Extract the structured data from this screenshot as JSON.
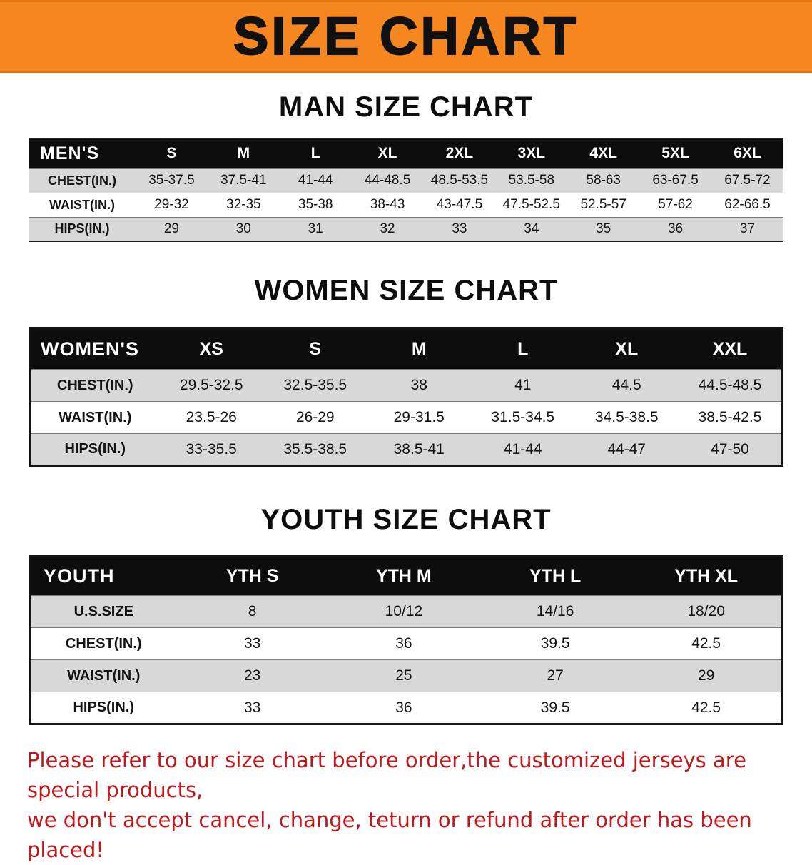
{
  "banner": {
    "title": "SIZE CHART"
  },
  "colors": {
    "banner_orange": "#f6861f",
    "header_bg": "#0d0d0d",
    "row_alt": "#d8d8d8",
    "notice_red": "#c2181b"
  },
  "men": {
    "heading": "MAN SIZE CHART",
    "table": {
      "header": [
        "MEN'S",
        "S",
        "M",
        "L",
        "XL",
        "2XL",
        "3XL",
        "4XL",
        "5XL",
        "6XL"
      ],
      "rows": [
        [
          "CHEST(IN.)",
          "35-37.5",
          "37.5-41",
          "41-44",
          "44-48.5",
          "48.5-53.5",
          "53.5-58",
          "58-63",
          "63-67.5",
          "67.5-72"
        ],
        [
          "WAIST(IN.)",
          "29-32",
          "32-35",
          "35-38",
          "38-43",
          "43-47.5",
          "47.5-52.5",
          "52.5-57",
          "57-62",
          "62-66.5"
        ],
        [
          "HIPS(IN.)",
          "29",
          "30",
          "31",
          "32",
          "33",
          "34",
          "35",
          "36",
          "37"
        ]
      ]
    }
  },
  "women": {
    "heading": "WOMEN SIZE CHART",
    "table": {
      "header": [
        "WOMEN'S",
        "XS",
        "S",
        "M",
        "L",
        "XL",
        "XXL"
      ],
      "rows": [
        [
          "CHEST(IN.)",
          "29.5-32.5",
          "32.5-35.5",
          "38",
          "41",
          "44.5",
          "44.5-48.5"
        ],
        [
          "WAIST(IN.)",
          "23.5-26",
          "26-29",
          "29-31.5",
          "31.5-34.5",
          "34.5-38.5",
          "38.5-42.5"
        ],
        [
          "HIPS(IN.)",
          "33-35.5",
          "35.5-38.5",
          "38.5-41",
          "41-44",
          "44-47",
          "47-50"
        ]
      ]
    }
  },
  "youth": {
    "heading": "YOUTH SIZE CHART",
    "table": {
      "header": [
        "YOUTH",
        "YTH S",
        "YTH M",
        "YTH L",
        "YTH XL"
      ],
      "rows": [
        [
          "U.S.SIZE",
          "8",
          "10/12",
          "14/16",
          "18/20"
        ],
        [
          "CHEST(IN.)",
          "33",
          "36",
          "39.5",
          "42.5"
        ],
        [
          "WAIST(IN.)",
          "23",
          "25",
          "27",
          "29"
        ],
        [
          "HIPS(IN.)",
          "33",
          "36",
          "39.5",
          "42.5"
        ]
      ]
    }
  },
  "footer": {
    "lines": [
      "Please refer to our size chart before order,the customized jerseys are special products,",
      "we don't accept cancel, change, teturn or refund after order has been placed!"
    ]
  }
}
